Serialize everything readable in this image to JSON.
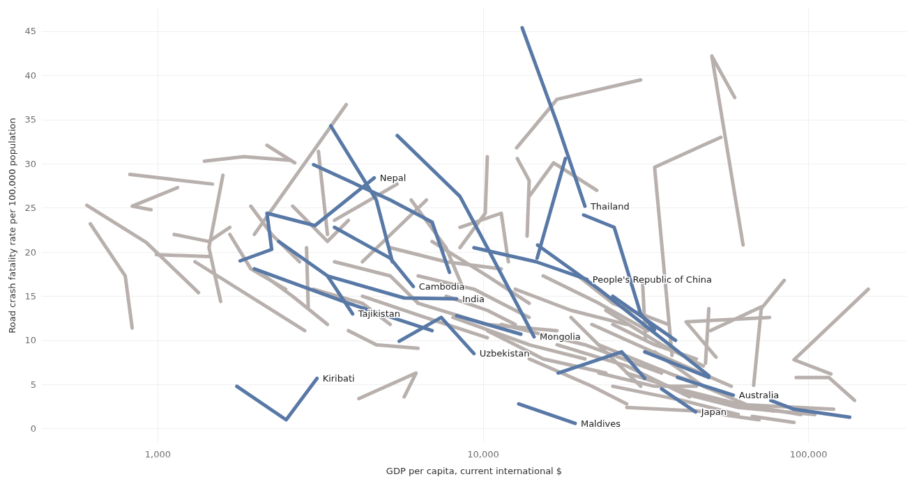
{
  "chart_data": {
    "type": "line",
    "xlabel": "GDP per capita, current international $",
    "ylabel": "Road crash fatality rate per 100,000 population",
    "log": "x",
    "xlim": [
      440,
      200000
    ],
    "ylim": [
      -1.6,
      47.6
    ],
    "xticks": [
      {
        "value": 1000,
        "label": "1,000"
      },
      {
        "value": 10000,
        "label": "10,000"
      },
      {
        "value": 100000,
        "label": "100,000"
      }
    ],
    "yticks": [
      0,
      5,
      10,
      15,
      20,
      25,
      30,
      35,
      40,
      45
    ],
    "grid": true,
    "series": [
      {
        "color": "#b8b0ad",
        "x": [
          620,
          794,
          834
        ],
        "values": [
          23.2,
          17.3,
          11.4
        ]
      },
      {
        "color": "#b8b0ad",
        "x": [
          605,
          921,
          1334
        ],
        "values": [
          25.3,
          21.1,
          15.4
        ]
      },
      {
        "color": "#b8b0ad",
        "x": [
          953,
          834,
          1150
        ],
        "values": [
          24.8,
          25.2,
          27.3
        ]
      },
      {
        "color": "#b8b0ad",
        "x": [
          820,
          1472
        ],
        "values": [
          28.8,
          27.7
        ]
      },
      {
        "color": "#b8b0ad",
        "x": [
          1585,
          1436,
          1560
        ],
        "values": [
          28.7,
          20.5,
          14.4
        ]
      },
      {
        "color": "#b8b0ad",
        "x": [
          1390,
          1838,
          2558
        ],
        "values": [
          30.3,
          30.8,
          30.4
        ]
      },
      {
        "color": "#b8b0ad",
        "x": [
          2165,
          2636
        ],
        "values": [
          32.1,
          30.1
        ]
      },
      {
        "color": "#b8b0ad",
        "x": [
          1980,
          2352,
          3795
        ],
        "values": [
          22.0,
          25.9,
          36.7
        ]
      },
      {
        "color": "#b8b0ad",
        "x": [
          3491,
          5443
        ],
        "values": [
          23.6,
          27.7
        ]
      },
      {
        "color": "#b8b0ad",
        "x": [
          4253,
          6697
        ],
        "values": [
          18.9,
          25.9
        ]
      },
      {
        "color": "#b8b0ad",
        "x": [
          10300,
          10150,
          8487
        ],
        "values": [
          30.8,
          24.4,
          20.5
        ]
      },
      {
        "color": "#b8b0ad",
        "x": [
          12730,
          13850,
          13650
        ],
        "values": [
          30.6,
          28.1,
          21.8
        ]
      },
      {
        "color": "#b8b0ad",
        "x": [
          30490,
          16870,
          12670
        ],
        "values": [
          39.5,
          37.3,
          31.8
        ]
      },
      {
        "color": "#b8b0ad",
        "x": [
          13850,
          16460,
          22350
        ],
        "values": [
          26.3,
          30.1,
          27.0
        ]
      },
      {
        "color": "#b8b0ad",
        "x": [
          59340,
          50450,
          62950
        ],
        "values": [
          37.5,
          42.2,
          20.8
        ]
      },
      {
        "color": "#b8b0ad",
        "x": [
          53770,
          33650,
          38070
        ],
        "values": [
          33.0,
          29.6,
          8.3
        ]
      },
      {
        "color": "#b8b0ad",
        "x": [
          84220,
          71580,
          67830
        ],
        "values": [
          16.8,
          13.6,
          4.9
        ]
      },
      {
        "color": "#b8b0ad",
        "x": [
          152700,
          90250,
          117200
        ],
        "values": [
          15.8,
          7.8,
          6.2
        ]
      },
      {
        "color": "#b8b0ad",
        "x": [
          91650,
          115500,
          138600
        ],
        "values": [
          5.8,
          5.8,
          3.2
        ]
      },
      {
        "color": "#b8b0ad",
        "x": [
          75950,
          42020,
          51960
        ],
        "values": [
          12.6,
          12.1,
          8.1
        ]
      },
      {
        "color": "#b8b0ad",
        "x": [
          49400,
          48240
        ],
        "values": [
          13.6,
          7.4
        ]
      },
      {
        "color": "#b8b0ad",
        "x": [
          49930,
          71580
        ],
        "values": [
          11.1,
          13.8
        ]
      },
      {
        "color": "#b8b0ad",
        "x": [
          30930,
          31560
        ],
        "values": [
          16.3,
          10.0
        ]
      },
      {
        "color": "#b8b0ad",
        "x": [
          64850,
          119500
        ],
        "values": [
          2.7,
          2.2
        ]
      },
      {
        "color": "#b8b0ad",
        "x": [
          67130,
          90250
        ],
        "values": [
          1.4,
          0.7
        ]
      },
      {
        "color": "#b8b0ad",
        "x": [
          1301,
          2828
        ],
        "values": [
          18.9,
          11.1
        ]
      },
      {
        "color": "#b8b0ad",
        "x": [
          990,
          1436
        ],
        "values": [
          19.7,
          19.5
        ]
      },
      {
        "color": "#b8b0ad",
        "x": [
          4150,
          6220,
          5718
        ],
        "values": [
          3.4,
          6.3,
          3.6
        ]
      },
      {
        "color": "#b8b0ad",
        "x": [
          2865,
          2900
        ],
        "values": [
          20.5,
          13.6
        ]
      },
      {
        "color": "#b8b0ad",
        "x": [
          3117,
          3323
        ],
        "values": [
          31.4,
          22.0
        ]
      },
      {
        "color": "#b8b0ad",
        "x": [
          6007,
          7689,
          8700
        ],
        "values": [
          25.9,
          20.5,
          15.8
        ]
      },
      {
        "color": "#b8b0ad",
        "x": [
          6966,
          10300,
          13850
        ],
        "values": [
          21.2,
          17.3,
          14.2
        ]
      },
      {
        "color": "#b8b0ad",
        "x": [
          8487,
          11370,
          11950
        ],
        "values": [
          22.8,
          24.4,
          18.9
        ]
      },
      {
        "color": "#b8b0ad",
        "x": [
          5181,
          7689,
          11370
        ],
        "values": [
          20.5,
          18.9,
          18.1
        ]
      },
      {
        "color": "#b8b0ad",
        "x": [
          6311,
          10300,
          16870
        ],
        "values": [
          14.2,
          11.8,
          11.1
        ]
      },
      {
        "color": "#b8b0ad",
        "x": [
          8078,
          13850,
          20550
        ],
        "values": [
          12.6,
          9.5,
          7.9
        ]
      },
      {
        "color": "#b8b0ad",
        "x": [
          10300,
          15290,
          23830
        ],
        "values": [
          11.1,
          7.9,
          6.3
        ]
      },
      {
        "color": "#b8b0ad",
        "x": [
          12550,
          18620,
          27630
        ],
        "values": [
          15.8,
          13.4,
          11.8
        ]
      },
      {
        "color": "#b8b0ad",
        "x": [
          15290,
          22680,
          32040
        ],
        "values": [
          17.3,
          14.2,
          11.1
        ]
      },
      {
        "color": "#b8b0ad",
        "x": [
          18620,
          25030,
          30490
        ],
        "values": [
          12.6,
          7.9,
          4.8
        ]
      },
      {
        "color": "#b8b0ad",
        "x": [
          13850,
          21590,
          27630
        ],
        "values": [
          7.9,
          4.8,
          2.8
        ]
      },
      {
        "color": "#b8b0ad",
        "x": [
          22680,
          37140,
          55110
        ],
        "values": [
          9.5,
          6.3,
          4.0
        ]
      },
      {
        "color": "#b8b0ad",
        "x": [
          25030,
          40990,
          60820
        ],
        "values": [
          4.8,
          3.2,
          1.6
        ]
      },
      {
        "color": "#b8b0ad",
        "x": [
          27630,
          45240,
          70530
        ],
        "values": [
          2.4,
          2.0,
          1.0
        ]
      },
      {
        "color": "#b8b0ad",
        "x": [
          19560,
          25030,
          37140
        ],
        "values": [
          17.3,
          14.2,
          11.8
        ]
      },
      {
        "color": "#b8b0ad",
        "x": [
          23830,
          35360,
          47530
        ],
        "values": [
          13.4,
          9.5,
          7.1
        ]
      },
      {
        "color": "#b8b0ad",
        "x": [
          33650,
          47530,
          63900
        ],
        "values": [
          8.7,
          4.8,
          2.8
        ]
      },
      {
        "color": "#b8b0ad",
        "x": [
          3491,
          5181,
          6311
        ],
        "values": [
          18.9,
          17.3,
          14.2
        ]
      },
      {
        "color": "#b8b0ad",
        "x": [
          3010,
          4253,
          5181
        ],
        "values": [
          15.8,
          14.2,
          11.8
        ]
      },
      {
        "color": "#b8b0ad",
        "x": [
          3853,
          4694,
          6311
        ],
        "values": [
          11.1,
          9.5,
          9.1
        ]
      },
      {
        "color": "#b8b0ad",
        "x": [
          2131,
          2596,
          3323
        ],
        "values": [
          17.3,
          15.0,
          11.8
        ]
      },
      {
        "color": "#b8b0ad",
        "x": [
          1931,
          2239,
          2727
        ],
        "values": [
          25.2,
          22.0,
          18.9
        ]
      },
      {
        "color": "#b8b0ad",
        "x": [
          2596,
          3323,
          3853
        ],
        "values": [
          25.2,
          21.2,
          23.6
        ]
      },
      {
        "color": "#b8b0ad",
        "x": [
          1665,
          1931,
          2471
        ],
        "values": [
          22.0,
          18.1,
          15.8
        ]
      },
      {
        "color": "#b8b0ad",
        "x": [
          1122,
          1436,
          1665
        ],
        "values": [
          22.0,
          21.2,
          22.8
        ]
      },
      {
        "color": "#b8b0ad",
        "x": [
          7689,
          10300,
          12550
        ],
        "values": [
          15.0,
          13.4,
          11.8
        ]
      },
      {
        "color": "#b8b0ad",
        "x": [
          40990,
          60820,
          104600
        ],
        "values": [
          4.0,
          2.4,
          1.6
        ]
      },
      {
        "color": "#b8b0ad",
        "x": [
          22680,
          33650,
          45240
        ],
        "values": [
          6.3,
          4.8,
          4.8
        ]
      },
      {
        "color": "#b8b0ad",
        "x": [
          16870,
          27630,
          43070
        ],
        "values": [
          9.5,
          7.1,
          3.6
        ]
      },
      {
        "color": "#b8b0ad",
        "x": [
          11370,
          20550,
          35360
        ],
        "values": [
          11.8,
          9.5,
          6.3
        ]
      },
      {
        "color": "#b8b0ad",
        "x": [
          21590,
          37140,
          57900
        ],
        "values": [
          11.8,
          7.9,
          4.8
        ]
      },
      {
        "color": "#b8b0ad",
        "x": [
          27630,
          47530,
          77840
        ],
        "values": [
          6.3,
          3.6,
          2.0
        ]
      },
      {
        "color": "#b8b0ad",
        "x": [
          37140,
          60820,
          94820
        ],
        "values": [
          4.8,
          2.8,
          1.6
        ]
      },
      {
        "color": "#b8b0ad",
        "x": [
          6311,
          9367,
          13850
        ],
        "values": [
          17.3,
          15.8,
          12.6
        ]
      },
      {
        "color": "#b8b0ad",
        "x": [
          4253,
          6631,
          10300
        ],
        "values": [
          15.0,
          12.6,
          10.3
        ]
      },
      {
        "color": "#b8b0ad",
        "x": [
          25030,
          33650,
          45240
        ],
        "values": [
          11.8,
          9.5,
          7.9
        ]
      },
      {
        "color": "#5878a6",
        "x": [
          76600,
          90250,
          133900
        ],
        "values": [
          3.2,
          2.2,
          1.3
        ]
      },
      {
        "color": "#5878a6",
        "x": [
          20360,
          25280,
          30490,
          33650
        ],
        "values": [
          24.2,
          22.8,
          13.0,
          11.2
        ]
      },
      {
        "color": "#5878a6",
        "x": [
          14700,
          22680,
          49400
        ],
        "values": [
          20.8,
          15.8,
          6.0
        ]
      },
      {
        "color": "#5878a6",
        "x": [
          25030,
          39020
        ],
        "values": [
          15.0,
          10.0
        ]
      },
      {
        "color": "#5878a6",
        "x": [
          17000,
          26660,
          31380
        ],
        "values": [
          6.3,
          8.7,
          5.7
        ]
      },
      {
        "color": "#5878a6",
        "x": [
          31380,
          49400
        ],
        "values": [
          8.7,
          5.8
        ]
      },
      {
        "color": "#5878a6",
        "x": [
          1980,
          3853,
          6966
        ],
        "values": [
          18.1,
          14.2,
          11.1
        ]
      },
      {
        "color": "#5878a6",
        "x": [
          8290,
          13060
        ],
        "values": [
          12.8,
          10.7
        ]
      },
      {
        "color": "#5878a6",
        "x": [
          17900,
          14650
        ],
        "values": [
          30.6,
          19.3
        ]
      },
      {
        "color": "#5878a6",
        "x": [
          3010,
          5181,
          6966,
          7880
        ],
        "values": [
          29.9,
          25.9,
          23.4,
          17.7
        ]
      },
      {
        "color": "#5878a6",
        "x": [
          3400,
          4694,
          5260
        ],
        "values": [
          34.3,
          25.9,
          18.9
        ]
      },
      {
        "name": "Thailand",
        "color": "#5878a6",
        "x": [
          13180,
          16870,
          20550
        ],
        "values": [
          45.4,
          34.6,
          25.2
        ]
      },
      {
        "name": "People's Republic of China",
        "color": "#5878a6",
        "x": [
          9367,
          14550,
          20850
        ],
        "values": [
          20.5,
          18.9,
          16.9
        ]
      },
      {
        "name": "Nepal",
        "color": "#5878a6",
        "x": [
          1790,
          2239,
          2165,
          3040,
          4625
        ],
        "values": [
          19.0,
          20.3,
          24.4,
          23.0,
          28.4
        ]
      },
      {
        "name": "Cambodia",
        "color": "#5878a6",
        "x": [
          3491,
          5181,
          6100
        ],
        "values": [
          22.8,
          19.3,
          16.1
        ]
      },
      {
        "name": "India",
        "color": "#5878a6",
        "x": [
          3323,
          5718,
          8290
        ],
        "values": [
          17.3,
          14.8,
          14.7
        ]
      },
      {
        "name": "Tajikistan",
        "color": "#5878a6",
        "x": [
          2352,
          3323,
          3970
        ],
        "values": [
          21.2,
          17.3,
          13.0
        ]
      },
      {
        "name": "Uzbekistan",
        "color": "#5878a6",
        "x": [
          5520,
          7430,
          9367
        ],
        "values": [
          9.9,
          12.6,
          8.5
        ]
      },
      {
        "name": "Mongolia",
        "color": "#5878a6",
        "x": [
          5443,
          8487,
          10300,
          14340
        ],
        "values": [
          33.2,
          26.3,
          20.5,
          10.4
        ]
      },
      {
        "name": "Kiribati",
        "color": "#5878a6",
        "x": [
          1749,
          2480,
          3085
        ],
        "values": [
          4.8,
          1.0,
          5.7
        ]
      },
      {
        "name": "Maldives",
        "color": "#5878a6",
        "x": [
          12860,
          19180
        ],
        "values": [
          2.8,
          0.6
        ]
      },
      {
        "name": "Japan",
        "color": "#5878a6",
        "x": [
          35360,
          44980
        ],
        "values": [
          4.5,
          1.9
        ]
      },
      {
        "name": "Australia",
        "color": "#5878a6",
        "x": [
          39580,
          58750
        ],
        "values": [
          5.8,
          3.8
        ]
      }
    ]
  }
}
